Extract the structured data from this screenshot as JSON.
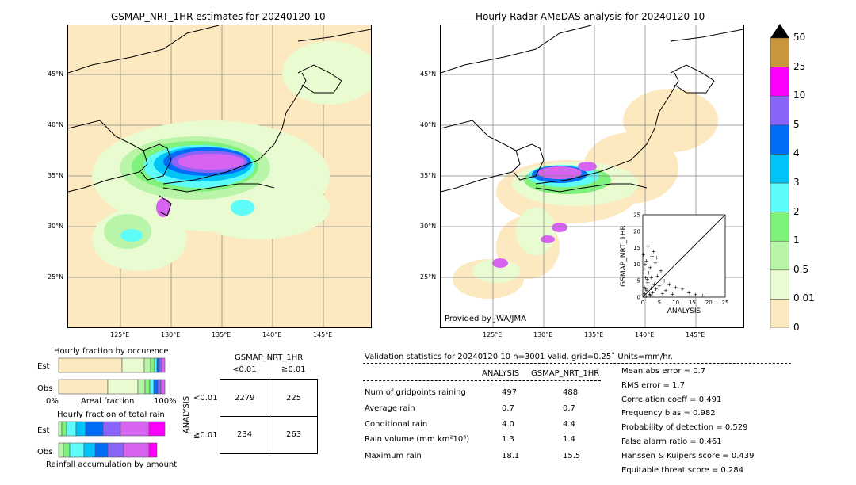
{
  "left_map": {
    "title": "GSMAP_NRT_1HR estimates for 20240120 10",
    "lat_labels": [
      "45°N",
      "40°N",
      "35°N",
      "30°N",
      "25°N"
    ],
    "lon_labels": [
      "125°E",
      "130°E",
      "135°E",
      "140°E",
      "145°E"
    ]
  },
  "right_map": {
    "title": "Hourly Radar-AMeDAS analysis for 20240120 10",
    "lat_labels": [
      "45°N",
      "40°N",
      "35°N",
      "30°N",
      "25°N"
    ],
    "lon_labels": [
      "125°E",
      "130°E",
      "135°E",
      "140°E",
      "145°E"
    ],
    "credit": "Provided by JWA/JMA"
  },
  "colorbar": {
    "labels": [
      "0",
      "0.01",
      "0.5",
      "1",
      "2",
      "3",
      "4",
      "5",
      "10",
      "25",
      "50"
    ],
    "colors": [
      "#fde9c0",
      "#e9fbd0",
      "#b9f5a8",
      "#7ef27a",
      "#5dfcf8",
      "#00c4f8",
      "#006cf8",
      "#8a64f8",
      "#d664f0",
      "#fc00fc",
      "#c8963c"
    ]
  },
  "scatter": {
    "xlabel": "ANALYSIS",
    "ylabel": "GSMAP_NRT_1HR",
    "ticks": [
      "0",
      "5",
      "10",
      "15",
      "20",
      "25"
    ]
  },
  "occurrence": {
    "title": "Hourly fraction by occurence",
    "row_labels": [
      "Est",
      "Obs"
    ],
    "axis_left": "0%",
    "axis_mid": "Areal fraction",
    "axis_right": "100%"
  },
  "total_rain": {
    "title": "Hourly fraction of total rain",
    "row_labels": [
      "Est",
      "Obs"
    ],
    "caption": "Rainfall accumulation by amount"
  },
  "contingency": {
    "title": "GSMAP_NRT_1HR",
    "col_labels": [
      "<0.01",
      "≧0.01"
    ],
    "row_axis": "ANALYSIS",
    "row_labels": [
      "<0.01",
      "≧0.01"
    ],
    "cells": [
      [
        "2279",
        "225"
      ],
      [
        "234",
        "263"
      ]
    ]
  },
  "validation": {
    "header": "Validation statistics for 20240120 10  n=3001 Valid. grid=0.25˚ Units=mm/hr.",
    "col_analysis": "ANALYSIS",
    "col_gsmap": "GSMAP_NRT_1HR",
    "rows": [
      {
        "label": "Num of gridpoints raining",
        "analysis": "497",
        "gsmap": "488"
      },
      {
        "label": "Average rain",
        "analysis": "0.7",
        "gsmap": "0.7"
      },
      {
        "label": "Conditional rain",
        "analysis": "4.0",
        "gsmap": "4.4"
      },
      {
        "label": "Rain volume (mm km²10⁶)",
        "analysis": "1.3",
        "gsmap": "1.4"
      },
      {
        "label": "Maximum rain",
        "analysis": "18.1",
        "gsmap": "15.5"
      }
    ],
    "scores": [
      "Mean abs error =    0.7",
      "RMS error =    1.7",
      "Correlation coeff =  0.491",
      "Frequency bias =  0.982",
      "Probability of detection =  0.529",
      "False alarm ratio =  0.461",
      "Hanssen & Kuipers score =  0.439",
      "Equitable threat score =  0.284"
    ]
  },
  "chart_data": {
    "type": "scatter",
    "xlabel": "ANALYSIS",
    "ylabel": "GSMAP_NRT_1HR",
    "xlim": [
      0,
      25
    ],
    "ylim": [
      0,
      25
    ],
    "points": [
      [
        0.3,
        0.5
      ],
      [
        0.6,
        1.2
      ],
      [
        1.0,
        0.4
      ],
      [
        1.2,
        2.0
      ],
      [
        0.5,
        3.0
      ],
      [
        2.0,
        1.0
      ],
      [
        1.5,
        4.5
      ],
      [
        0.8,
        6.0
      ],
      [
        2.5,
        2.8
      ],
      [
        3.0,
        1.5
      ],
      [
        1.8,
        7.5
      ],
      [
        2.2,
        9.0
      ],
      [
        3.5,
        4.0
      ],
      [
        4.0,
        2.5
      ],
      [
        0.4,
        8.5
      ],
      [
        1.1,
        11.0
      ],
      [
        2.8,
        12.5
      ],
      [
        3.2,
        14.0
      ],
      [
        1.6,
        15.5
      ],
      [
        4.5,
        6.5
      ],
      [
        5.0,
        3.5
      ],
      [
        5.5,
        8.0
      ],
      [
        6.0,
        1.2
      ],
      [
        6.5,
        5.0
      ],
      [
        7.0,
        2.0
      ],
      [
        8.0,
        4.0
      ],
      [
        9.0,
        1.0
      ],
      [
        10.0,
        3.0
      ],
      [
        12.0,
        2.5
      ],
      [
        14.0,
        1.5
      ],
      [
        16.0,
        0.8
      ],
      [
        18.1,
        0.5
      ],
      [
        0.2,
        13.0
      ],
      [
        0.7,
        10.0
      ],
      [
        2.6,
        6.0
      ],
      [
        3.8,
        10.5
      ],
      [
        4.2,
        12.0
      ],
      [
        1.4,
        5.5
      ],
      [
        0.9,
        2.5
      ],
      [
        2.3,
        0.6
      ]
    ]
  }
}
